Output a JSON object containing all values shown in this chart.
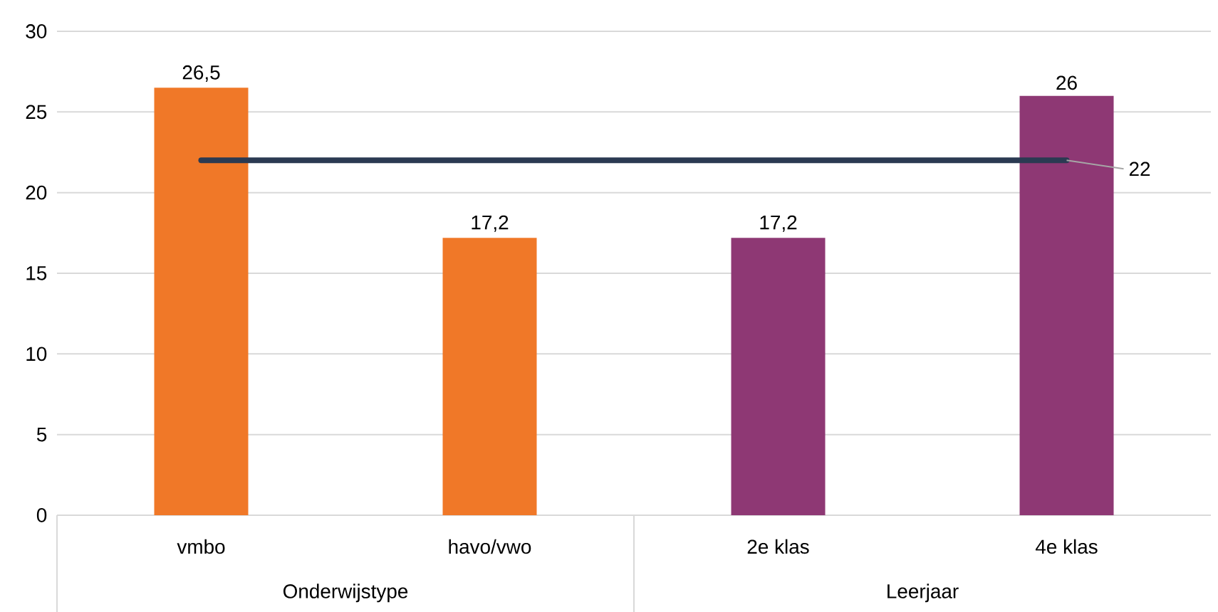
{
  "chart_data": {
    "type": "bar",
    "categories": [
      "vmbo",
      "havo/vwo",
      "2e klas",
      "4e klas"
    ],
    "series": [
      {
        "colors": [
          "#f07828",
          "#f07828",
          "#8e3874",
          "#8e3874"
        ],
        "values": [
          26.5,
          17.2,
          17.2,
          26
        ],
        "value_labels": [
          "26,5",
          "17,2",
          "17,2",
          "26"
        ]
      },
      {
        "type": "line",
        "color": "#2b3a52",
        "values": [
          22,
          22,
          22,
          22
        ],
        "value_labels": [
          null,
          null,
          null,
          "22"
        ]
      }
    ],
    "ylim": [
      0,
      30
    ],
    "yticks": [
      0,
      5,
      10,
      15,
      20,
      25,
      30
    ],
    "grid": "y",
    "annotations": [
      "Onderwijstype",
      "Leerjaar"
    ]
  }
}
